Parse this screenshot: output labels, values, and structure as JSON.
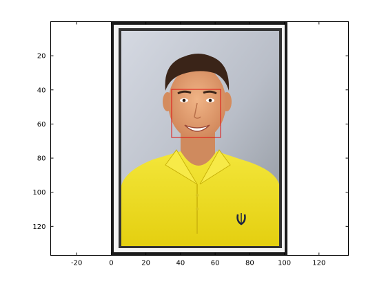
{
  "figure": {
    "x_ticks": [
      "-20",
      "0",
      "20",
      "40",
      "60",
      "80",
      "100",
      "120"
    ],
    "y_ticks": [
      "20",
      "40",
      "60",
      "80",
      "100",
      "120"
    ],
    "colors": {
      "axes": "#000000",
      "frame_outer": "#1a1a1a",
      "frame_mat": "#f2f2f2",
      "frame_inner": "#3a3a3a",
      "background_top": "#c8cdd8",
      "background_bottom": "#9aa0a8",
      "detection_box": "#e01010",
      "shirt": "#f0e020",
      "skin": "#e0a070",
      "hair": "#3a2418"
    },
    "icons": {
      "image_content": "portrait-photo"
    }
  },
  "chart_data": {
    "type": "image",
    "x_ticks": [
      -20,
      0,
      20,
      40,
      60,
      80,
      100,
      120
    ],
    "y_ticks": [
      20,
      40,
      60,
      80,
      100,
      120
    ],
    "xlim": [
      -35,
      137
    ],
    "ylim": [
      0,
      137
    ],
    "y_direction": "reverse",
    "grid": false,
    "image_extent": {
      "x": [
        1,
        101
      ],
      "y": [
        1,
        137
      ]
    },
    "face_box": {
      "x": [
        36,
        64
      ],
      "y": [
        40,
        68
      ]
    }
  }
}
